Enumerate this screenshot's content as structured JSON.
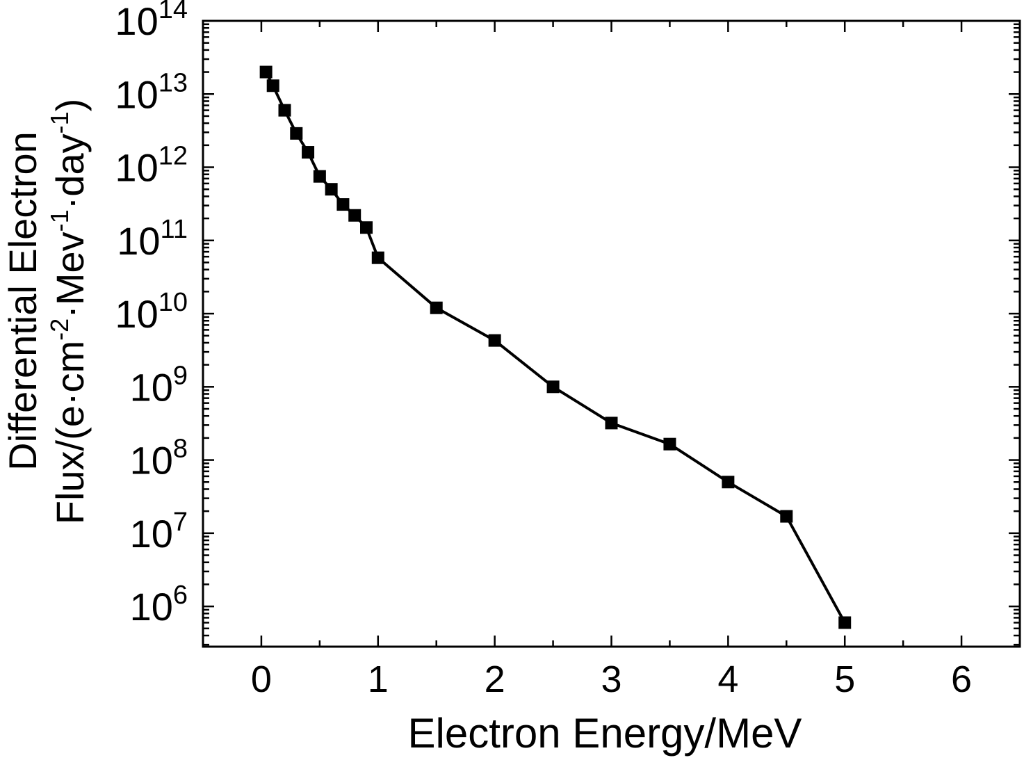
{
  "chart_data": {
    "type": "line",
    "title": "",
    "xlabel": "Electron Energy/MeV",
    "ylabel_line1": "Differential Electron",
    "ylabel_line2_base": "Flux/(e·cm",
    "ylabel_line2_sup1": "-2",
    "ylabel_line2_mid1": "·Mev",
    "ylabel_line2_sup2": "-1",
    "ylabel_line2_mid2": "·day",
    "ylabel_line2_sup3": "-1",
    "ylabel_line2_end": ")",
    "xlim": [
      -0.5,
      6.5
    ],
    "yscale": "log",
    "ylim_exp": [
      5.45,
      14
    ],
    "xticks": [
      0,
      1,
      2,
      3,
      4,
      5,
      6
    ],
    "yticks": [
      {
        "exp": 6,
        "base": "10",
        "sup": "6"
      },
      {
        "exp": 7,
        "base": "10",
        "sup": "7"
      },
      {
        "exp": 8,
        "base": "10",
        "sup": "8"
      },
      {
        "exp": 9,
        "base": "10",
        "sup": "9"
      },
      {
        "exp": 10,
        "base": "10",
        "sup": "10"
      },
      {
        "exp": 11,
        "base": "10",
        "sup": "11"
      },
      {
        "exp": 12,
        "base": "10",
        "sup": "12"
      },
      {
        "exp": 13,
        "base": "10",
        "sup": "13"
      },
      {
        "exp": 14,
        "base": "10",
        "sup": "14"
      }
    ],
    "grid": false,
    "line_color": "#000000",
    "series": [
      {
        "marker": "square",
        "x": [
          0.04,
          0.1,
          0.2,
          0.3,
          0.4,
          0.5,
          0.6,
          0.7,
          0.8,
          0.9,
          1.0,
          1.5,
          2.0,
          2.5,
          3.0,
          3.5,
          4.0,
          4.5,
          5.0
        ],
        "y": [
          20000000000000.0,
          13000000000000.0,
          6000000000000.0,
          2900000000000.0,
          1600000000000.0,
          750000000000.0,
          500000000000.0,
          310000000000.0,
          220000000000.0,
          150000000000.0,
          58000000000.0,
          12000000000.0,
          4300000000.0,
          1000000000.0,
          320000000.0,
          165000000.0,
          50000000.0,
          17000000.0,
          600000.0
        ]
      }
    ]
  }
}
